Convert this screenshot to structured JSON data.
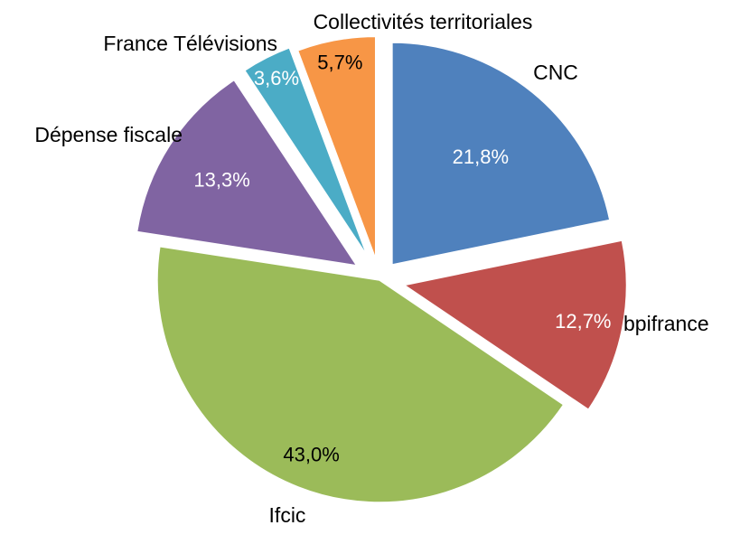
{
  "chart_data": {
    "type": "pie",
    "legend": "none",
    "exploded": true,
    "slices": [
      {
        "name": "CNC",
        "value": 21.8,
        "value_label": "21,8%",
        "color": "#4F81BD",
        "value_text_color": "#ffffff"
      },
      {
        "name": "bpifrance",
        "value": 12.7,
        "value_label": "12,7%",
        "color": "#C0504D",
        "value_text_color": "#ffffff"
      },
      {
        "name": "Ifcic",
        "value": 43.0,
        "value_label": "43,0%",
        "color": "#9BBB59",
        "value_text_color": "#000000"
      },
      {
        "name": "Dépense fiscale",
        "value": 13.3,
        "value_label": "13,3%",
        "color": "#8064A2",
        "value_text_color": "#ffffff"
      },
      {
        "name": "France Télévisions",
        "value": 3.6,
        "value_label": "3,6%",
        "color": "#4BACC6",
        "value_text_color": "#ffffff"
      },
      {
        "name": "Collectivités territoriales",
        "value": 5.7,
        "value_label": "5,7%",
        "color": "#F79646",
        "value_text_color": "#000000"
      }
    ]
  }
}
